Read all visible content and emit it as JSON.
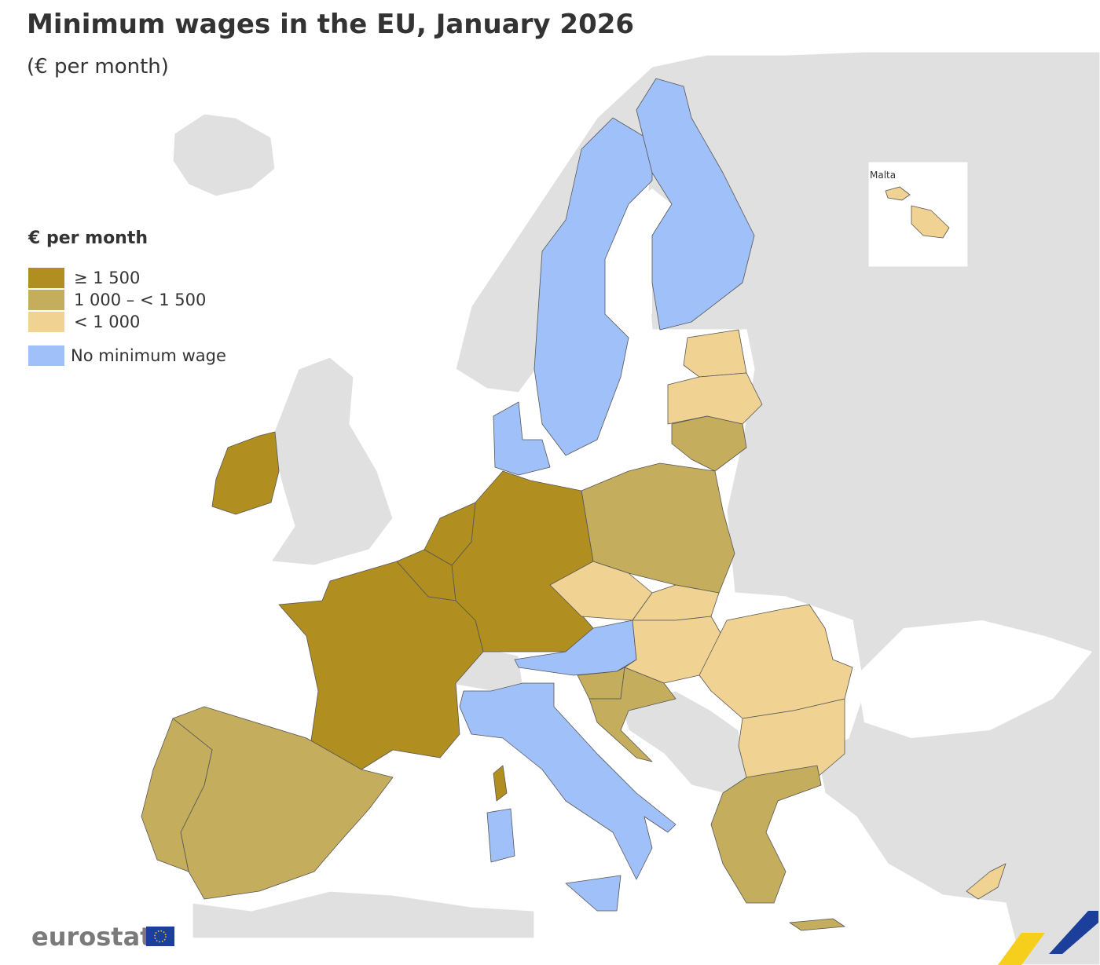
{
  "header": {
    "title": "Minimum wages in the EU, January 2026",
    "subtitle": "(€ per month)"
  },
  "legend": {
    "title": "€ per month",
    "items": [
      {
        "label": "≥ 1 500",
        "color": "#b08f20"
      },
      {
        "label": "1 000 – < 1 500",
        "color": "#c5ad5e"
      },
      {
        "label": "< 1 000",
        "color": "#f0d292"
      },
      {
        "label": "No minimum wage",
        "color": "#a0c0fa"
      }
    ]
  },
  "inset": {
    "label": "Malta"
  },
  "logo": {
    "text": "eurostat"
  }
}
